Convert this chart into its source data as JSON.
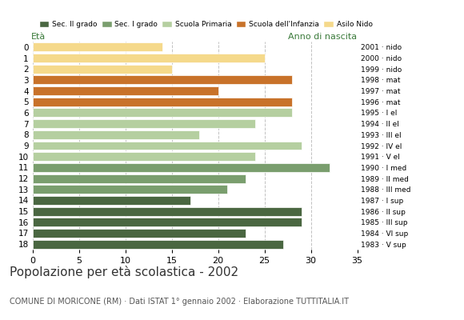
{
  "ages": [
    18,
    17,
    16,
    15,
    14,
    13,
    12,
    11,
    10,
    9,
    8,
    7,
    6,
    5,
    4,
    3,
    2,
    1,
    0
  ],
  "values": [
    27,
    23,
    29,
    29,
    17,
    21,
    23,
    32,
    24,
    29,
    18,
    24,
    28,
    28,
    20,
    28,
    15,
    25,
    14
  ],
  "right_labels": [
    "1983 · V sup",
    "1984 · VI sup",
    "1985 · III sup",
    "1986 · II sup",
    "1987 · I sup",
    "1988 · III med",
    "1989 · II med",
    "1990 · I med",
    "1991 · V el",
    "1992 · IV el",
    "1993 · III el",
    "1994 · II el",
    "1995 · I el",
    "1996 · mat",
    "1997 · mat",
    "1998 · mat",
    "1999 · nido",
    "2000 · nido",
    "2001 · nido"
  ],
  "bar_colors": [
    "#4a6741",
    "#4a6741",
    "#4a6741",
    "#4a6741",
    "#4a6741",
    "#7a9e6e",
    "#7a9e6e",
    "#7a9e6e",
    "#b5cfa0",
    "#b5cfa0",
    "#b5cfa0",
    "#b5cfa0",
    "#b5cfa0",
    "#c8722a",
    "#c8722a",
    "#c8722a",
    "#f5d98b",
    "#f5d98b",
    "#f5d98b"
  ],
  "legend_labels": [
    "Sec. II grado",
    "Sec. I grado",
    "Scuola Primaria",
    "Scuola dell'Infanzia",
    "Asilo Nido"
  ],
  "legend_colors": [
    "#4a6741",
    "#7a9e6e",
    "#b5cfa0",
    "#c8722a",
    "#f5d98b"
  ],
  "title": "Popolazione per età scolastica - 2002",
  "subtitle": "COMUNE DI MORICONE (RM) · Dati ISTAT 1° gennaio 2002 · Elaborazione TUTTITALIA.IT",
  "xlabel_left": "Età",
  "xlabel_right": "Anno di nascita",
  "xlim": [
    0,
    35
  ],
  "xticks": [
    0,
    5,
    10,
    15,
    20,
    25,
    30,
    35
  ],
  "background_color": "#ffffff",
  "grid_color": "#bbbbbb",
  "text_color": "#3a7a3a",
  "title_color": "#333333",
  "subtitle_color": "#555555"
}
